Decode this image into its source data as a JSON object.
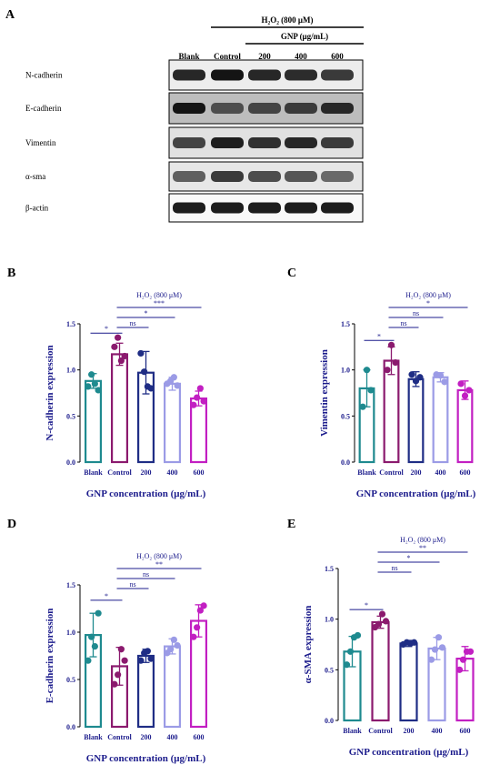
{
  "panel_labels": {
    "A": "A",
    "B": "B",
    "C": "C",
    "D": "D",
    "E": "E"
  },
  "western_blot": {
    "h2o2_label": "H₂O₂ (800 μM)",
    "gnp_label": "GNP (μg/mL)",
    "lanes": [
      "Blank",
      "Control",
      "200",
      "400",
      "600"
    ],
    "proteins": [
      {
        "name": "N-cadherin",
        "intensity": [
          0.85,
          0.95,
          0.85,
          0.82,
          0.75
        ],
        "background": 0.15
      },
      {
        "name": "E-cadherin",
        "intensity": [
          0.95,
          0.65,
          0.7,
          0.75,
          0.85
        ],
        "background": 0.55
      },
      {
        "name": "Vimentin",
        "intensity": [
          0.7,
          0.9,
          0.8,
          0.85,
          0.75
        ],
        "background": 0.25
      },
      {
        "name": "α-sma",
        "intensity": [
          0.55,
          0.75,
          0.65,
          0.6,
          0.5
        ],
        "background": 0.2
      },
      {
        "name": "β-actin",
        "intensity": [
          0.9,
          0.9,
          0.9,
          0.9,
          0.9
        ],
        "background": 0.05
      }
    ]
  },
  "chart_data": [
    {
      "panel": "B",
      "type": "bar",
      "categories": [
        "Blank",
        "Control",
        "200",
        "400",
        "600"
      ],
      "values": [
        0.88,
        1.17,
        0.97,
        0.85,
        0.69
      ],
      "errors": [
        0.08,
        0.12,
        0.23,
        0.07,
        0.08
      ],
      "points": [
        [
          0.82,
          0.95,
          0.85,
          0.78
        ],
        [
          1.25,
          1.35,
          1.1,
          1.15
        ],
        [
          1.18,
          0.98,
          0.82,
          0.8
        ],
        [
          0.85,
          0.88,
          0.92,
          0.83
        ],
        [
          0.62,
          0.7,
          0.8,
          0.66
        ]
      ],
      "colors": [
        "#1e8a8f",
        "#8b1a6e",
        "#1f2d85",
        "#9b9be6",
        "#c21fc2"
      ],
      "ylabel": "N-cadherin expression",
      "xlabel": "GNP concentration (μg/mL)",
      "ylim": [
        0,
        1.5
      ],
      "yticks": [
        "0.0",
        "0.5",
        "1.0",
        "1.5"
      ],
      "h2o2_label": "H₂O₂ (800 μM)",
      "significance": [
        {
          "from": "Blank",
          "to": "Control",
          "label": "*"
        },
        {
          "from": "Control",
          "to": "200",
          "label": "ns"
        },
        {
          "from": "Control",
          "to": "400",
          "label": "*"
        },
        {
          "from": "Control",
          "to": "600",
          "label": "***"
        }
      ]
    },
    {
      "panel": "C",
      "type": "bar",
      "categories": [
        "Blank",
        "Control",
        "200",
        "400",
        "600"
      ],
      "values": [
        0.8,
        1.1,
        0.9,
        0.92,
        0.78
      ],
      "errors": [
        0.2,
        0.15,
        0.08,
        0.05,
        0.1
      ],
      "points": [
        [
          0.6,
          1.0,
          0.78
        ],
        [
          1.0,
          1.27,
          1.08
        ],
        [
          0.95,
          0.88,
          0.92
        ],
        [
          0.95,
          0.94,
          0.87
        ],
        [
          0.85,
          0.72,
          0.78
        ]
      ],
      "colors": [
        "#1e8a8f",
        "#8b1a6e",
        "#1f2d85",
        "#9b9be6",
        "#c21fc2"
      ],
      "ylabel": "Vimentin expression",
      "xlabel": "GNP concentration (μg/mL)",
      "ylim": [
        0,
        1.5
      ],
      "yticks": [
        "0.0",
        "0.5",
        "1.0",
        "1.5"
      ],
      "h2o2_label": "H₂O₂ (800 μM)",
      "significance": [
        {
          "from": "Blank",
          "to": "Control",
          "label": "*"
        },
        {
          "from": "Control",
          "to": "200",
          "label": "ns"
        },
        {
          "from": "Control",
          "to": "400",
          "label": "ns"
        },
        {
          "from": "Control",
          "to": "600",
          "label": "*"
        }
      ]
    },
    {
      "panel": "D",
      "type": "bar",
      "categories": [
        "Blank",
        "Control",
        "200",
        "400",
        "600"
      ],
      "values": [
        0.97,
        0.64,
        0.75,
        0.85,
        1.12
      ],
      "errors": [
        0.23,
        0.2,
        0.07,
        0.08,
        0.17
      ],
      "points": [
        [
          0.7,
          0.95,
          0.85,
          1.2
        ],
        [
          0.45,
          0.55,
          0.82,
          0.7
        ],
        [
          0.7,
          0.78,
          0.8,
          0.72
        ],
        [
          0.78,
          0.82,
          0.92,
          0.86
        ],
        [
          0.95,
          1.05,
          1.23,
          1.28
        ]
      ],
      "colors": [
        "#1e8a8f",
        "#8b1a6e",
        "#1f2d85",
        "#9b9be6",
        "#c21fc2"
      ],
      "ylabel": "E-cadherin expression",
      "xlabel": "GNP concentration (μg/mL)",
      "ylim": [
        0,
        1.5
      ],
      "yticks": [
        "0.0",
        "0.5",
        "1.0",
        "1.5"
      ],
      "h2o2_label": "H₂O₂ (800 μM)",
      "significance": [
        {
          "from": "Blank",
          "to": "Control",
          "label": "*"
        },
        {
          "from": "Control",
          "to": "200",
          "label": "ns"
        },
        {
          "from": "Control",
          "to": "400",
          "label": "ns"
        },
        {
          "from": "Control",
          "to": "600",
          "label": "**"
        }
      ]
    },
    {
      "panel": "E",
      "type": "bar",
      "categories": [
        "Blank",
        "Control",
        "200",
        "400",
        "600"
      ],
      "values": [
        0.68,
        0.97,
        0.76,
        0.71,
        0.61
      ],
      "errors": [
        0.15,
        0.06,
        0.03,
        0.11,
        0.12
      ],
      "points": [
        [
          0.55,
          0.68,
          0.82,
          0.84
        ],
        [
          0.92,
          0.95,
          1.05,
          0.98
        ],
        [
          0.75,
          0.77,
          0.76,
          0.77
        ],
        [
          0.6,
          0.7,
          0.82,
          0.72
        ],
        [
          0.5,
          0.6,
          0.68,
          0.68
        ]
      ],
      "colors": [
        "#1e8a8f",
        "#8b1a6e",
        "#1f2d85",
        "#9b9be6",
        "#c21fc2"
      ],
      "ylabel": "α-SMA expression",
      "xlabel": "GNP concentration (μg/mL)",
      "ylim": [
        0,
        1.5
      ],
      "yticks": [
        "0.0",
        "0.5",
        "1.0",
        "1.5"
      ],
      "h2o2_label": "H₂O₂ (800 μM)",
      "significance": [
        {
          "from": "Blank",
          "to": "Control",
          "label": "*"
        },
        {
          "from": "Control",
          "to": "200",
          "label": "ns"
        },
        {
          "from": "Control",
          "to": "400",
          "label": "*"
        },
        {
          "from": "Control",
          "to": "600",
          "label": "**"
        }
      ]
    }
  ]
}
